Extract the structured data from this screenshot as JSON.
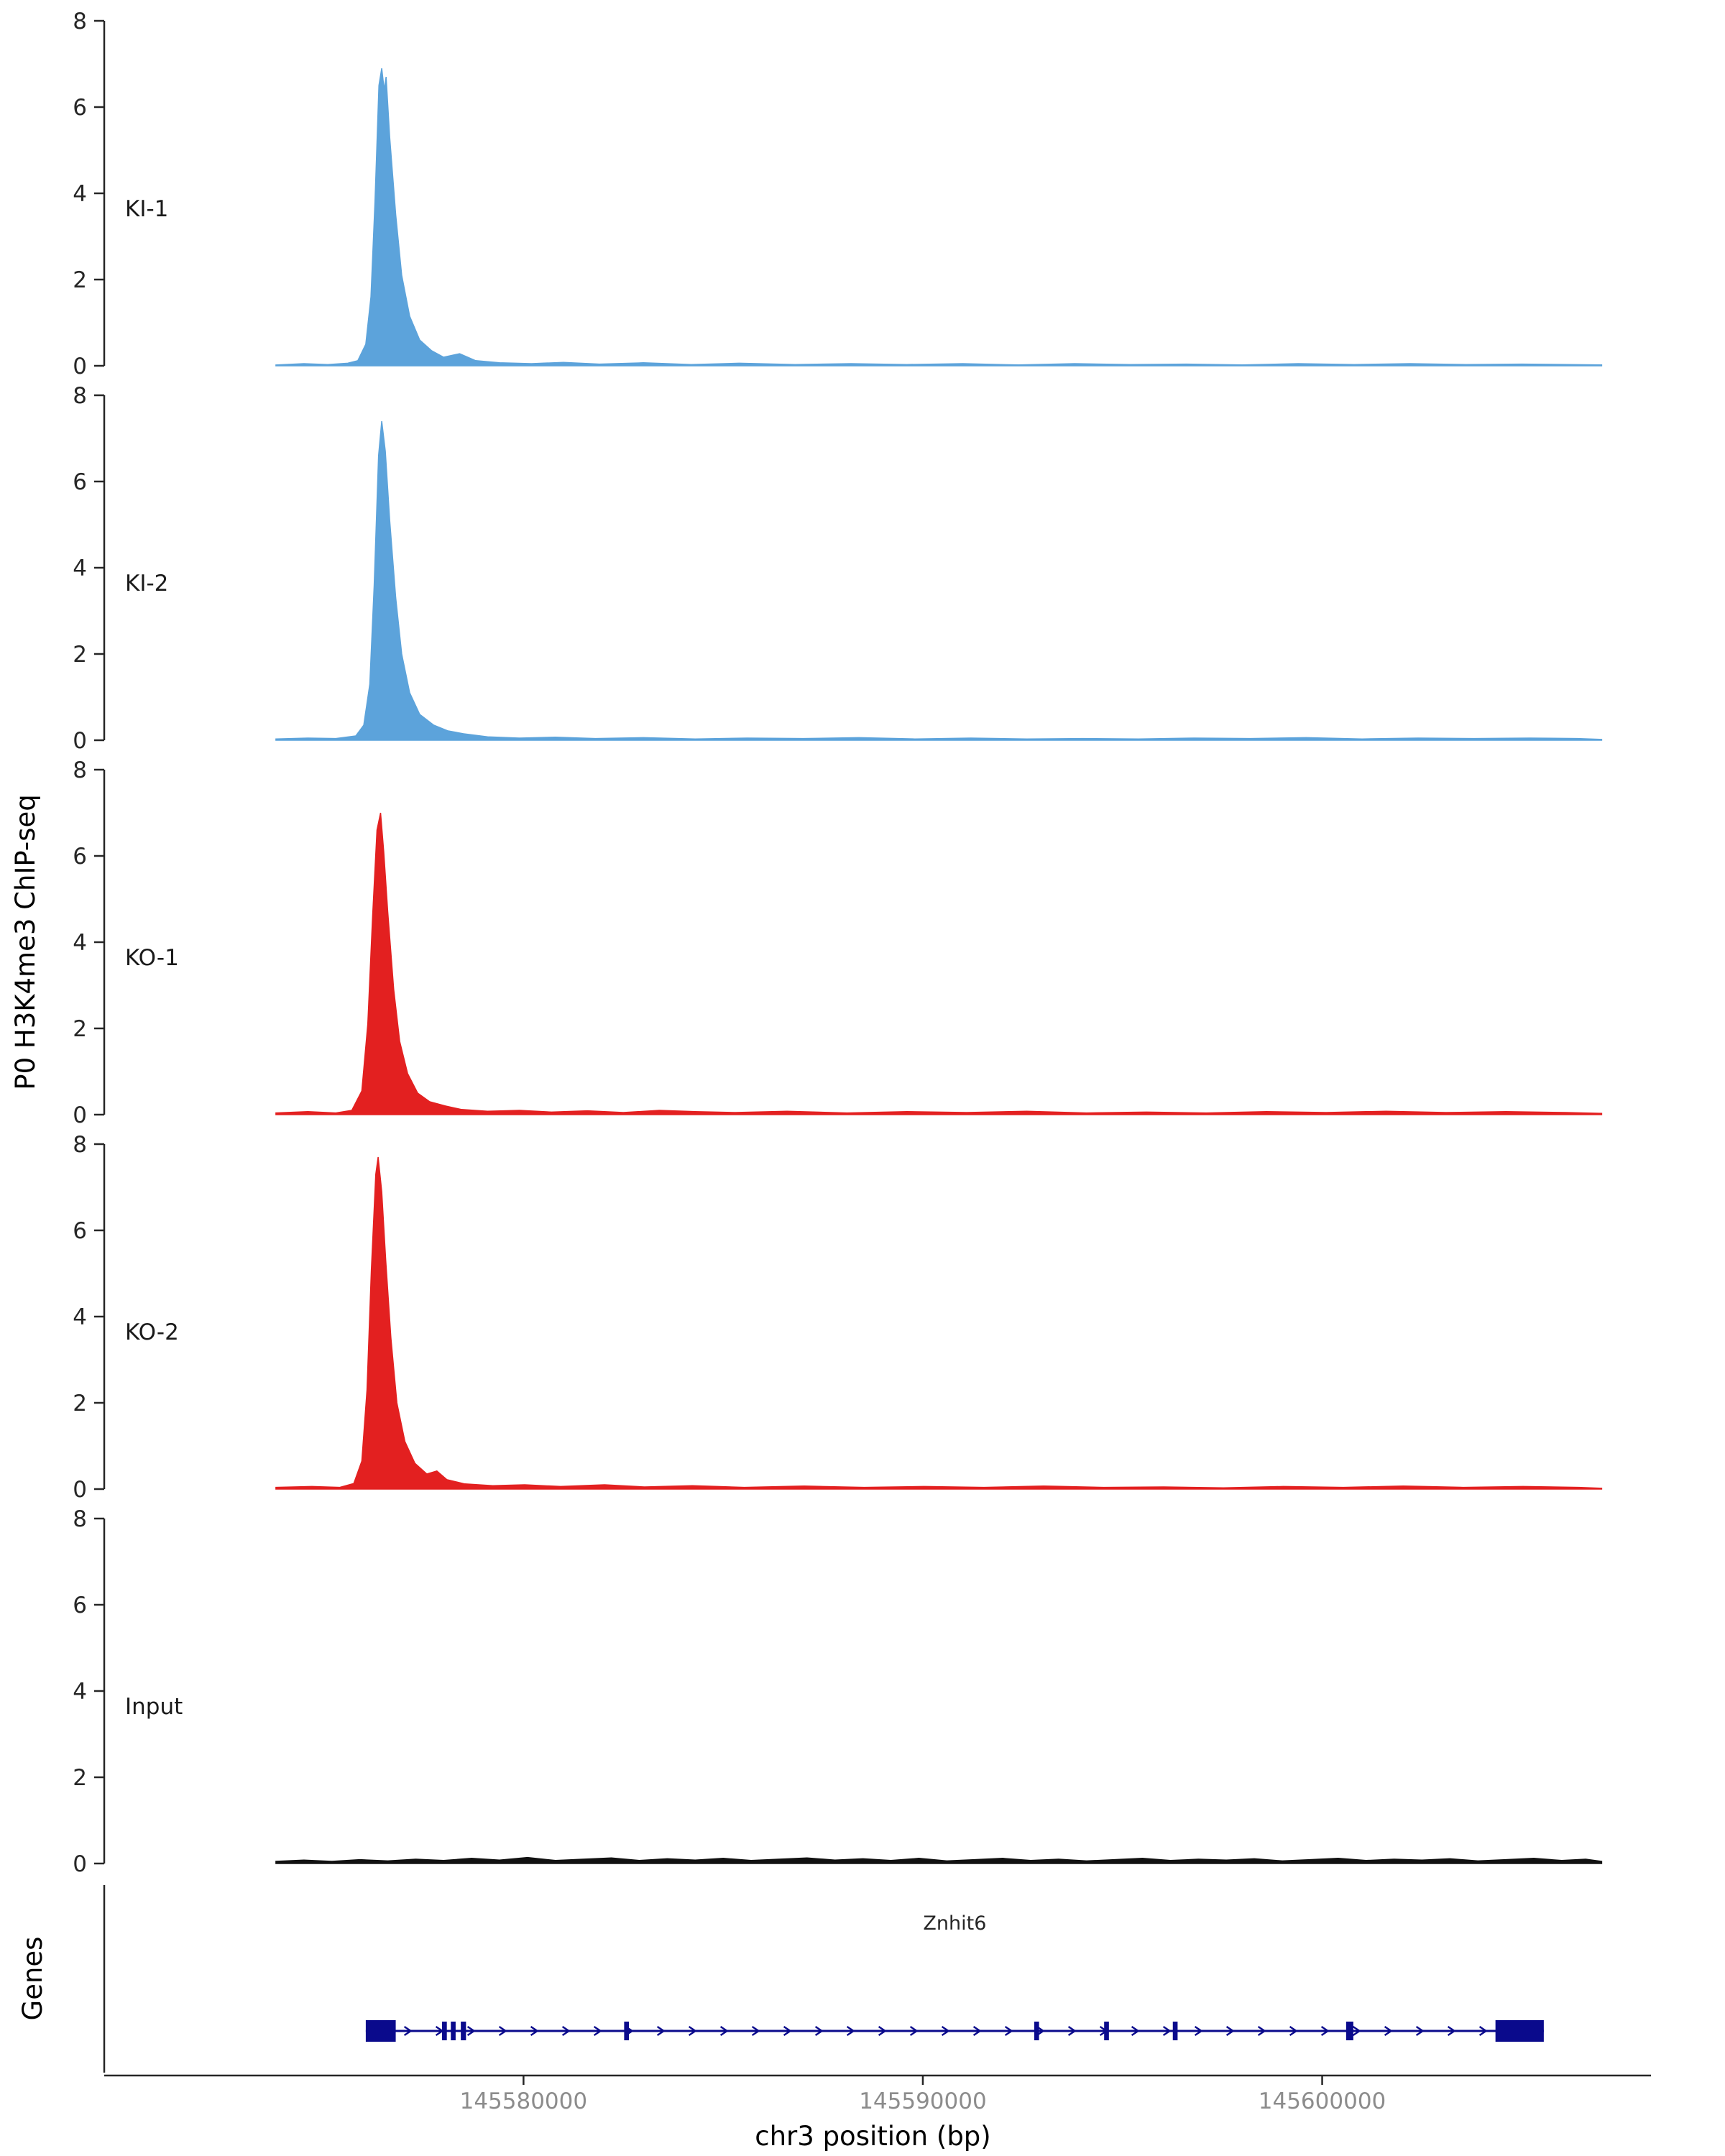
{
  "figure": {
    "kind": "genome-browser-chipseq-tracks",
    "background": "#ffffff"
  },
  "chart_data": {
    "type": "area",
    "title": "",
    "xlabel": "chr3 position (bp)",
    "ylabel": "P0 H3K4me3 ChIP-seq",
    "x_range": [
      145569500,
      145608000
    ],
    "y_range": [
      0,
      8
    ],
    "yticks": [
      0,
      2,
      4,
      6,
      8
    ],
    "xticks": [
      {
        "value": 145580000,
        "label": "145580000"
      },
      {
        "value": 145590000,
        "label": "145590000"
      },
      {
        "value": 145600000,
        "label": "145600000"
      }
    ],
    "grid": false,
    "legend": "none",
    "axis_color": "#262626",
    "xtick_label_color": "#8c8c8c",
    "tracks": [
      {
        "name": "KI-1",
        "color": "#5ca3db",
        "peak_summit_bp": 145576450,
        "peak_height": 6.9,
        "profile": [
          [
            145573800,
            0.02
          ],
          [
            145574500,
            0.05
          ],
          [
            145575100,
            0.03
          ],
          [
            145575600,
            0.06
          ],
          [
            145575850,
            0.12
          ],
          [
            145576050,
            0.5
          ],
          [
            145576180,
            1.6
          ],
          [
            145576280,
            3.8
          ],
          [
            145576380,
            6.5
          ],
          [
            145576450,
            6.9
          ],
          [
            145576510,
            6.4
          ],
          [
            145576560,
            6.7
          ],
          [
            145576650,
            5.3
          ],
          [
            145576800,
            3.5
          ],
          [
            145576950,
            2.1
          ],
          [
            145577150,
            1.15
          ],
          [
            145577400,
            0.6
          ],
          [
            145577700,
            0.35
          ],
          [
            145578000,
            0.2
          ],
          [
            145578400,
            0.28
          ],
          [
            145578800,
            0.12
          ],
          [
            145579400,
            0.07
          ],
          [
            145580200,
            0.05
          ],
          [
            145581000,
            0.08
          ],
          [
            145581900,
            0.04
          ],
          [
            145583000,
            0.07
          ],
          [
            145584200,
            0.03
          ],
          [
            145585400,
            0.06
          ],
          [
            145586800,
            0.03
          ],
          [
            145588200,
            0.05
          ],
          [
            145589600,
            0.03
          ],
          [
            145591000,
            0.05
          ],
          [
            145592400,
            0.02
          ],
          [
            145593800,
            0.05
          ],
          [
            145595200,
            0.03
          ],
          [
            145596600,
            0.04
          ],
          [
            145598000,
            0.02
          ],
          [
            145599400,
            0.05
          ],
          [
            145600800,
            0.03
          ],
          [
            145602200,
            0.05
          ],
          [
            145603600,
            0.03
          ],
          [
            145605000,
            0.04
          ],
          [
            145606200,
            0.03
          ],
          [
            145607000,
            0.02
          ]
        ]
      },
      {
        "name": "KI-2",
        "color": "#5ca3db",
        "peak_summit_bp": 145576450,
        "peak_height": 7.4,
        "profile": [
          [
            145573800,
            0.03
          ],
          [
            145574600,
            0.05
          ],
          [
            145575300,
            0.04
          ],
          [
            145575800,
            0.1
          ],
          [
            145576000,
            0.35
          ],
          [
            145576150,
            1.3
          ],
          [
            145576260,
            3.6
          ],
          [
            145576370,
            6.6
          ],
          [
            145576450,
            7.4
          ],
          [
            145576540,
            6.7
          ],
          [
            145576650,
            5.1
          ],
          [
            145576800,
            3.3
          ],
          [
            145576950,
            2.0
          ],
          [
            145577150,
            1.1
          ],
          [
            145577400,
            0.6
          ],
          [
            145577750,
            0.35
          ],
          [
            145578100,
            0.22
          ],
          [
            145578500,
            0.15
          ],
          [
            145579100,
            0.08
          ],
          [
            145579900,
            0.05
          ],
          [
            145580800,
            0.07
          ],
          [
            145581800,
            0.04
          ],
          [
            145583000,
            0.06
          ],
          [
            145584300,
            0.03
          ],
          [
            145585600,
            0.05
          ],
          [
            145587000,
            0.04
          ],
          [
            145588400,
            0.06
          ],
          [
            145589800,
            0.03
          ],
          [
            145591200,
            0.05
          ],
          [
            145592600,
            0.03
          ],
          [
            145594000,
            0.04
          ],
          [
            145595400,
            0.03
          ],
          [
            145596800,
            0.05
          ],
          [
            145598200,
            0.04
          ],
          [
            145599600,
            0.06
          ],
          [
            145601000,
            0.03
          ],
          [
            145602400,
            0.05
          ],
          [
            145603800,
            0.04
          ],
          [
            145605200,
            0.05
          ],
          [
            145606400,
            0.04
          ],
          [
            145607000,
            0.02
          ]
        ]
      },
      {
        "name": "KO-1",
        "color": "#e32020",
        "peak_summit_bp": 145576420,
        "peak_height": 7.0,
        "profile": [
          [
            145573800,
            0.04
          ],
          [
            145574600,
            0.07
          ],
          [
            145575300,
            0.04
          ],
          [
            145575700,
            0.1
          ],
          [
            145575950,
            0.55
          ],
          [
            145576100,
            2.1
          ],
          [
            145576220,
            4.6
          ],
          [
            145576330,
            6.6
          ],
          [
            145576420,
            7.0
          ],
          [
            145576500,
            6.1
          ],
          [
            145576600,
            4.7
          ],
          [
            145576750,
            2.9
          ],
          [
            145576900,
            1.7
          ],
          [
            145577100,
            0.95
          ],
          [
            145577350,
            0.5
          ],
          [
            145577650,
            0.3
          ],
          [
            145578050,
            0.2
          ],
          [
            145578450,
            0.12
          ],
          [
            145579100,
            0.08
          ],
          [
            145579900,
            0.1
          ],
          [
            145580700,
            0.06
          ],
          [
            145581600,
            0.09
          ],
          [
            145582500,
            0.05
          ],
          [
            145583400,
            0.1
          ],
          [
            145584300,
            0.07
          ],
          [
            145585300,
            0.05
          ],
          [
            145586600,
            0.08
          ],
          [
            145588100,
            0.04
          ],
          [
            145589600,
            0.07
          ],
          [
            145591100,
            0.05
          ],
          [
            145592600,
            0.08
          ],
          [
            145594100,
            0.04
          ],
          [
            145595600,
            0.06
          ],
          [
            145597100,
            0.04
          ],
          [
            145598600,
            0.07
          ],
          [
            145600100,
            0.05
          ],
          [
            145601600,
            0.08
          ],
          [
            145603100,
            0.05
          ],
          [
            145604600,
            0.07
          ],
          [
            145606100,
            0.05
          ],
          [
            145607000,
            0.03
          ]
        ]
      },
      {
        "name": "KO-2",
        "color": "#e32020",
        "peak_summit_bp": 145576360,
        "peak_height": 7.7,
        "profile": [
          [
            145573800,
            0.04
          ],
          [
            145574700,
            0.06
          ],
          [
            145575400,
            0.04
          ],
          [
            145575750,
            0.13
          ],
          [
            145575950,
            0.65
          ],
          [
            145576080,
            2.3
          ],
          [
            145576190,
            5.1
          ],
          [
            145576300,
            7.3
          ],
          [
            145576360,
            7.7
          ],
          [
            145576450,
            6.9
          ],
          [
            145576550,
            5.3
          ],
          [
            145576680,
            3.5
          ],
          [
            145576830,
            2.0
          ],
          [
            145577030,
            1.1
          ],
          [
            145577280,
            0.6
          ],
          [
            145577580,
            0.35
          ],
          [
            145577830,
            0.42
          ],
          [
            145578080,
            0.22
          ],
          [
            145578530,
            0.12
          ],
          [
            145579230,
            0.08
          ],
          [
            145580030,
            0.1
          ],
          [
            145580930,
            0.06
          ],
          [
            145582030,
            0.1
          ],
          [
            145583030,
            0.05
          ],
          [
            145584230,
            0.08
          ],
          [
            145585530,
            0.04
          ],
          [
            145587030,
            0.07
          ],
          [
            145588530,
            0.04
          ],
          [
            145590030,
            0.06
          ],
          [
            145591530,
            0.04
          ],
          [
            145593030,
            0.07
          ],
          [
            145594530,
            0.04
          ],
          [
            145596030,
            0.05
          ],
          [
            145597530,
            0.03
          ],
          [
            145599030,
            0.06
          ],
          [
            145600530,
            0.04
          ],
          [
            145602030,
            0.07
          ],
          [
            145603530,
            0.04
          ],
          [
            145605030,
            0.06
          ],
          [
            145606430,
            0.04
          ],
          [
            145607000,
            0.02
          ]
        ]
      },
      {
        "name": "Input",
        "color": "#111111",
        "peak_summit_bp": null,
        "peak_height": 0.14,
        "profile": [
          [
            145573800,
            0.05
          ],
          [
            145574500,
            0.08
          ],
          [
            145575200,
            0.05
          ],
          [
            145575900,
            0.09
          ],
          [
            145576600,
            0.06
          ],
          [
            145577300,
            0.1
          ],
          [
            145578000,
            0.07
          ],
          [
            145578700,
            0.12
          ],
          [
            145579400,
            0.08
          ],
          [
            145580100,
            0.14
          ],
          [
            145580800,
            0.07
          ],
          [
            145581500,
            0.1
          ],
          [
            145582200,
            0.13
          ],
          [
            145582900,
            0.07
          ],
          [
            145583600,
            0.11
          ],
          [
            145584300,
            0.08
          ],
          [
            145585000,
            0.12
          ],
          [
            145585700,
            0.07
          ],
          [
            145586400,
            0.1
          ],
          [
            145587100,
            0.13
          ],
          [
            145587800,
            0.08
          ],
          [
            145588500,
            0.11
          ],
          [
            145589200,
            0.07
          ],
          [
            145589900,
            0.12
          ],
          [
            145590600,
            0.06
          ],
          [
            145591300,
            0.09
          ],
          [
            145592000,
            0.12
          ],
          [
            145592700,
            0.07
          ],
          [
            145593400,
            0.1
          ],
          [
            145594100,
            0.06
          ],
          [
            145594800,
            0.09
          ],
          [
            145595500,
            0.12
          ],
          [
            145596200,
            0.07
          ],
          [
            145596900,
            0.1
          ],
          [
            145597600,
            0.08
          ],
          [
            145598300,
            0.11
          ],
          [
            145599000,
            0.06
          ],
          [
            145599700,
            0.09
          ],
          [
            145600400,
            0.12
          ],
          [
            145601100,
            0.07
          ],
          [
            145601800,
            0.1
          ],
          [
            145602500,
            0.08
          ],
          [
            145603200,
            0.11
          ],
          [
            145603900,
            0.06
          ],
          [
            145604600,
            0.09
          ],
          [
            145605300,
            0.12
          ],
          [
            145606000,
            0.07
          ],
          [
            145606600,
            0.1
          ],
          [
            145607000,
            0.05
          ]
        ]
      }
    ],
    "genes_panel": {
      "label": "Genes",
      "gene": {
        "name": "Znhit6",
        "color": "#0a0a8c",
        "strand": "+",
        "start": 145576050,
        "end": 145605550,
        "exons": [
          [
            145576050,
            145576800
          ],
          [
            145577960,
            145578080
          ],
          [
            145578180,
            145578300
          ],
          [
            145578430,
            145578560
          ],
          [
            145582520,
            145582640
          ],
          [
            145592790,
            145592910
          ],
          [
            145594540,
            145594660
          ],
          [
            145596260,
            145596380
          ],
          [
            145600600,
            145600780
          ],
          [
            145604340,
            145605550
          ]
        ]
      }
    }
  }
}
